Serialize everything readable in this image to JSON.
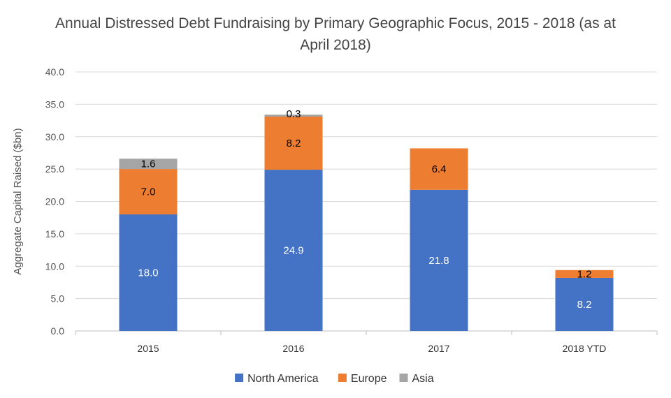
{
  "chart_data": {
    "type": "bar",
    "stacked": true,
    "title": "Annual Distressed Debt Fundraising by Primary Geographic Focus, 2015 - 2018 (as at April 2018)",
    "xlabel": "",
    "ylabel": "Aggregate Capital Raised ($bn)",
    "ylim": [
      0,
      40
    ],
    "yticks": [
      "0.0",
      "5.0",
      "10.0",
      "15.0",
      "20.0",
      "25.0",
      "30.0",
      "35.0",
      "40.0"
    ],
    "grid": true,
    "legend_position": "bottom",
    "categories": [
      "2015",
      "2016",
      "2017",
      "2018 YTD"
    ],
    "series": [
      {
        "name": "North America",
        "color": "#4472C4",
        "label_color": "#ffffff",
        "values": [
          18.0,
          24.9,
          21.8,
          8.2
        ],
        "labels": [
          "18.0",
          "24.9",
          "21.8",
          "8.2"
        ]
      },
      {
        "name": "Europe",
        "color": "#ED7D31",
        "label_color": "#000000",
        "values": [
          7.0,
          8.2,
          6.4,
          1.2
        ],
        "labels": [
          "7.0",
          "8.2",
          "6.4",
          "1.2"
        ]
      },
      {
        "name": "Asia",
        "color": "#A5A5A5",
        "label_color": "#000000",
        "values": [
          1.6,
          0.3,
          0,
          0
        ],
        "labels": [
          "1.6",
          "0.3",
          "",
          ""
        ]
      }
    ]
  }
}
